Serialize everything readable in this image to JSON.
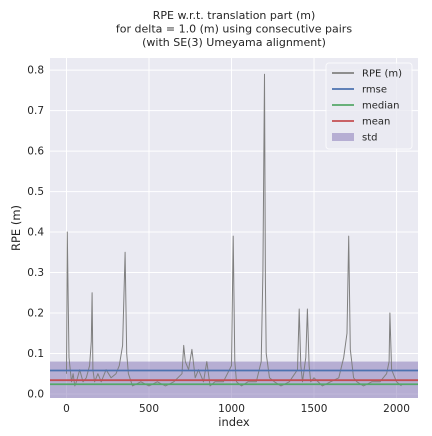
{
  "chart_data": {
    "type": "line",
    "title": [
      "RPE w.r.t. translation part (m)",
      "for delta = 1.0 (m) using consecutive pairs",
      "(with SE(3) Umeyama alignment)"
    ],
    "xlabel": "index",
    "ylabel": "RPE (m)",
    "xlim": [
      -100,
      2130
    ],
    "ylim": [
      -0.01,
      0.83
    ],
    "xticks": [
      0,
      500,
      1000,
      1500,
      2000
    ],
    "yticks": [
      0.0,
      0.1,
      0.2,
      0.3,
      0.4,
      0.5,
      0.6,
      0.7,
      0.8
    ],
    "grid": true,
    "legend_position": "top-right",
    "legend": [
      "RPE (m)",
      "rmse",
      "median",
      "mean",
      "std"
    ],
    "background_color": "#eaeaf2",
    "series": [
      {
        "name": "RPE (m)",
        "kind": "line",
        "color": "#808080",
        "x": [
          0,
          5,
          10,
          15,
          20,
          30,
          40,
          50,
          60,
          80,
          100,
          120,
          140,
          150,
          155,
          160,
          170,
          190,
          210,
          240,
          270,
          300,
          320,
          340,
          355,
          365,
          375,
          400,
          450,
          500,
          550,
          600,
          650,
          700,
          710,
          720,
          740,
          760,
          780,
          800,
          830,
          850,
          870,
          900,
          950,
          1000,
          1010,
          1020,
          1030,
          1060,
          1100,
          1150,
          1180,
          1190,
          1200,
          1205,
          1210,
          1230,
          1260,
          1300,
          1350,
          1400,
          1410,
          1420,
          1430,
          1450,
          1460,
          1470,
          1480,
          1500,
          1550,
          1600,
          1650,
          1680,
          1700,
          1710,
          1720,
          1740,
          1760,
          1800,
          1850,
          1900,
          1940,
          1955,
          1960,
          1970,
          2000,
          2030
        ],
        "y": [
          0.05,
          0.4,
          0.23,
          0.09,
          0.07,
          0.03,
          0.05,
          0.02,
          0.03,
          0.06,
          0.03,
          0.04,
          0.07,
          0.13,
          0.25,
          0.06,
          0.03,
          0.05,
          0.03,
          0.06,
          0.04,
          0.05,
          0.07,
          0.12,
          0.35,
          0.1,
          0.05,
          0.02,
          0.03,
          0.02,
          0.03,
          0.02,
          0.03,
          0.05,
          0.12,
          0.08,
          0.06,
          0.11,
          0.04,
          0.06,
          0.03,
          0.08,
          0.02,
          0.03,
          0.03,
          0.07,
          0.39,
          0.08,
          0.03,
          0.02,
          0.03,
          0.03,
          0.08,
          0.3,
          0.79,
          0.28,
          0.1,
          0.04,
          0.03,
          0.02,
          0.03,
          0.06,
          0.21,
          0.07,
          0.03,
          0.09,
          0.21,
          0.07,
          0.03,
          0.04,
          0.02,
          0.03,
          0.04,
          0.09,
          0.15,
          0.39,
          0.11,
          0.04,
          0.03,
          0.02,
          0.03,
          0.03,
          0.05,
          0.08,
          0.2,
          0.06,
          0.03,
          0.02
        ]
      },
      {
        "name": "rmse",
        "kind": "hline",
        "color": "#4c72b0",
        "y": 0.058
      },
      {
        "name": "median",
        "kind": "hline",
        "color": "#55a868",
        "y": 0.024
      },
      {
        "name": "mean",
        "kind": "hline",
        "color": "#c44e52",
        "y": 0.034
      },
      {
        "name": "std",
        "kind": "band",
        "color": "#8172b3",
        "center": 0.034,
        "std": 0.046
      }
    ]
  }
}
